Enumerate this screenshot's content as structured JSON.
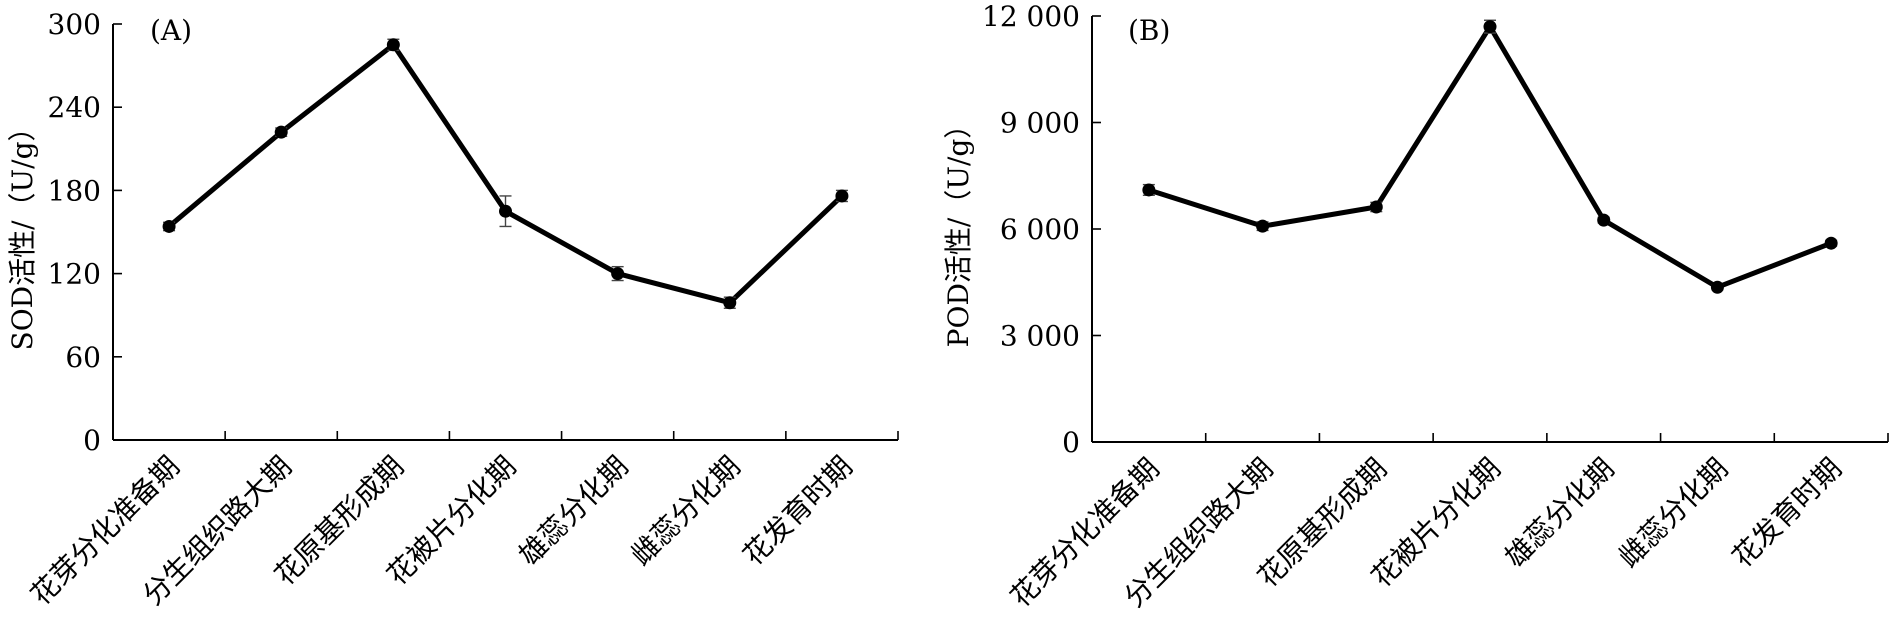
{
  "chart_data": [
    {
      "type": "line",
      "panel_label": "(A)",
      "ylabel": "SOD活性/（U/g）",
      "ylim": [
        0,
        300
      ],
      "yticks": [
        "0",
        "60",
        "120",
        "180",
        "240",
        "300"
      ],
      "ytick_values": [
        0,
        60,
        120,
        180,
        240,
        300
      ],
      "categories": [
        "花芽分化准备期",
        "分生组织路大期",
        "花原基形成期",
        "花被片分化期",
        "雄蕊分化期",
        "雌蕊分化期",
        "花发育时期"
      ],
      "series": [
        {
          "values": [
            154,
            222,
            285,
            165,
            120,
            99,
            176
          ],
          "errors": [
            3,
            3,
            4,
            11,
            5,
            4,
            4
          ]
        }
      ],
      "grid": false
    },
    {
      "type": "line",
      "panel_label": "(B)",
      "ylabel": "POD活性/（U/g）",
      "ylim": [
        0,
        12000
      ],
      "yticks": [
        "0",
        "3 000",
        "6 000",
        "9 000",
        "12 000"
      ],
      "ytick_values": [
        0,
        3000,
        6000,
        9000,
        12000
      ],
      "categories": [
        "花芽分化准备期",
        "分生组织路大期",
        "花原基形成期",
        "花被片分化期",
        "雄蕊分化期",
        "雌蕊分化期",
        "花发育时期"
      ],
      "series": [
        {
          "values": [
            7100,
            6080,
            6620,
            11700,
            6250,
            4360,
            5600
          ],
          "errors": [
            150,
            120,
            130,
            180,
            80,
            70,
            80
          ]
        }
      ],
      "grid": false
    }
  ]
}
